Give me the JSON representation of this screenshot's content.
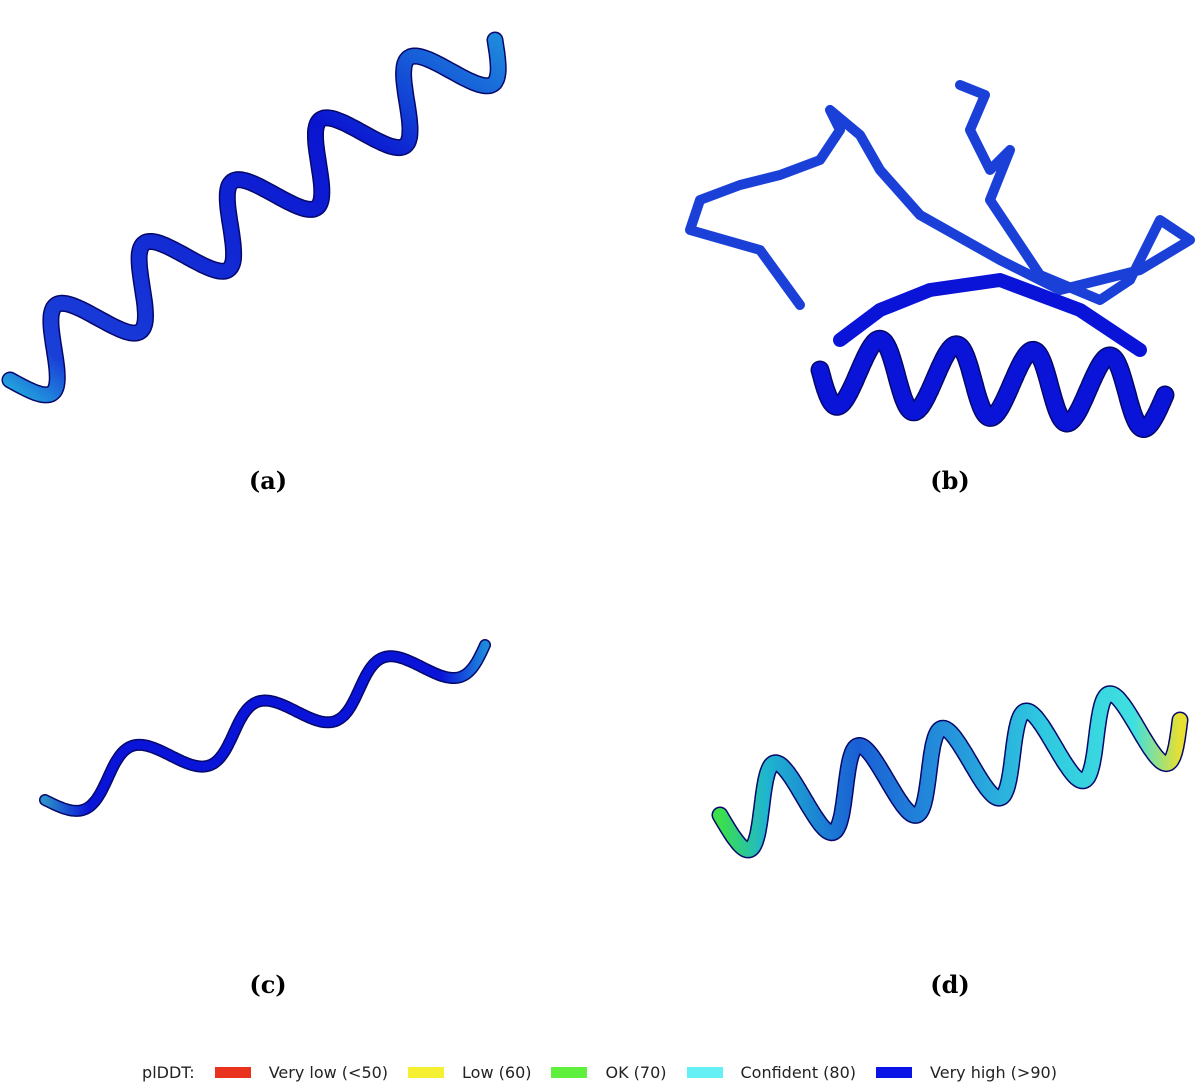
{
  "panels": [
    {
      "label": "(a)"
    },
    {
      "label": "(b)"
    },
    {
      "label": "(c)"
    },
    {
      "label": "(d)"
    }
  ],
  "legend": {
    "title": "plDDT:",
    "items": [
      {
        "label": "Very low (<50)",
        "color": "#e8321e"
      },
      {
        "label": "Low (60)",
        "color": "#f5f032"
      },
      {
        "label": "OK (70)",
        "color": "#5ef03c"
      },
      {
        "label": "Confident (80)",
        "color": "#64f0f5"
      },
      {
        "label": "Very high (>90)",
        "color": "#0a14e6"
      }
    ]
  }
}
